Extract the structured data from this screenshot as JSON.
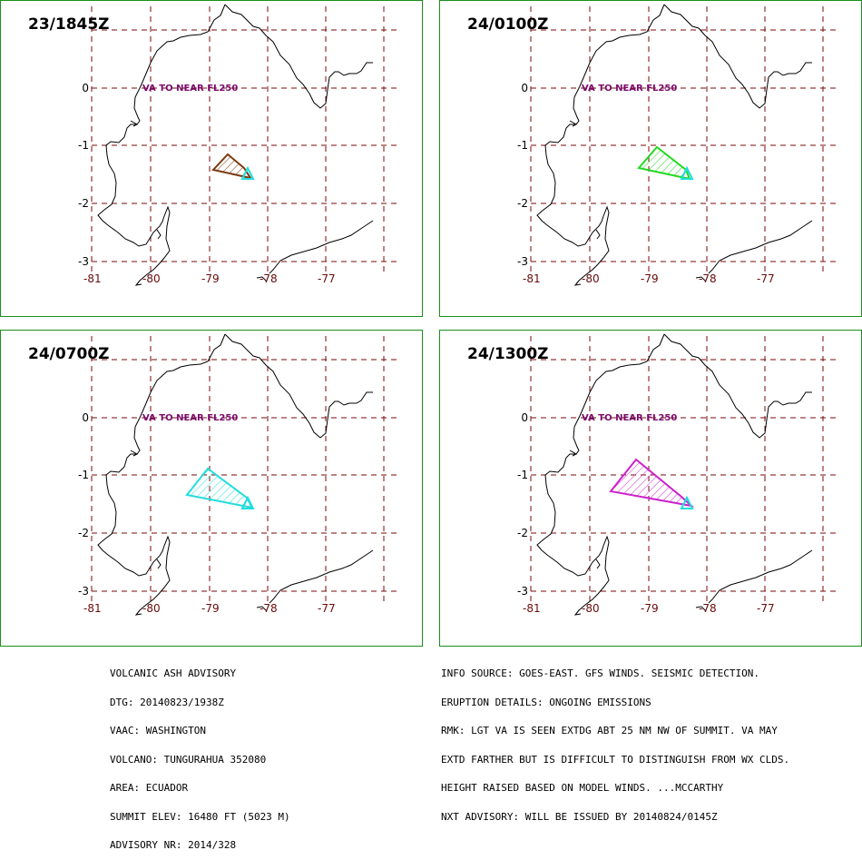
{
  "panels": [
    {
      "time": "23/1845Z",
      "va": "VA TO NEAR FL250",
      "ash_color": "#7a3a10"
    },
    {
      "time": "24/0100Z",
      "va": "VA TO NEAR FL250",
      "ash_color": "#22d822"
    },
    {
      "time": "24/0700Z",
      "va": "VA TO NEAR FL250",
      "ash_color": "#22dcdc"
    },
    {
      "time": "24/1300Z",
      "va": "VA TO NEAR FL250",
      "ash_color": "#cc22cc"
    }
  ],
  "lat_labels": [
    "0",
    "-1",
    "-2",
    "-3"
  ],
  "lon_labels": [
    "-81",
    "-80",
    "-79",
    "-78",
    "-77"
  ],
  "colors": {
    "grid": "#7a0a0a",
    "border": "#1a8f1a",
    "volcano": "#22dcdc"
  },
  "advisory_left": [
    "VOLCANIC ASH ADVISORY",
    "DTG: 20140823/1938Z",
    "VAAC: WASHINGTON",
    "VOLCANO: TUNGURAHUA 352080",
    "AREA: ECUADOR",
    "SUMMIT ELEV: 16480 FT (5023 M)",
    "ADVISORY NR: 2014/328"
  ],
  "advisory_right": [
    "INFO SOURCE: GOES-EAST. GFS WINDS. SEISMIC DETECTION.",
    "ERUPTION DETAILS: ONGOING EMISSIONS",
    "RMK: LGT VA IS SEEN EXTDG ABT 25 NM NW OF SUMMIT. VA MAY",
    "EXTD FARTHER BUT IS DIFFICULT TO DISTINGUISH FROM WX CLDS.",
    "HEIGHT RAISED BASED ON MODEL WINDS. ...MCCARTHY",
    "NXT ADVISORY: WILL BE ISSUED BY 20140824/0145Z"
  ]
}
